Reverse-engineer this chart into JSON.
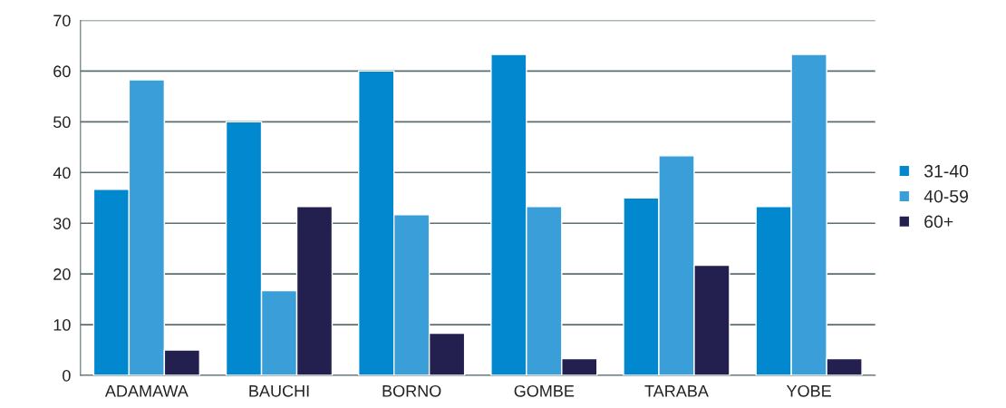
{
  "chart_data": {
    "type": "bar",
    "categories": [
      "ADAMAWA",
      "BAUCHI",
      "BORNO",
      "GOMBE",
      "TARABA",
      "YOBE"
    ],
    "series": [
      {
        "name": "31-40",
        "color": "#0288cf",
        "values": [
          36.7,
          50,
          60,
          63.3,
          35,
          33.3
        ]
      },
      {
        "name": "40-59",
        "color": "#3a9fd8",
        "values": [
          58.3,
          16.7,
          31.7,
          33.3,
          43.3,
          63.3
        ]
      },
      {
        "name": "60+",
        "color": "#231f4f",
        "values": [
          5,
          33.3,
          8.3,
          3.3,
          21.7,
          3.3
        ]
      }
    ],
    "ylim": [
      0,
      70
    ],
    "yticks": [
      0,
      10,
      20,
      30,
      40,
      50,
      60,
      70
    ],
    "grid": "y",
    "legend": "right"
  }
}
